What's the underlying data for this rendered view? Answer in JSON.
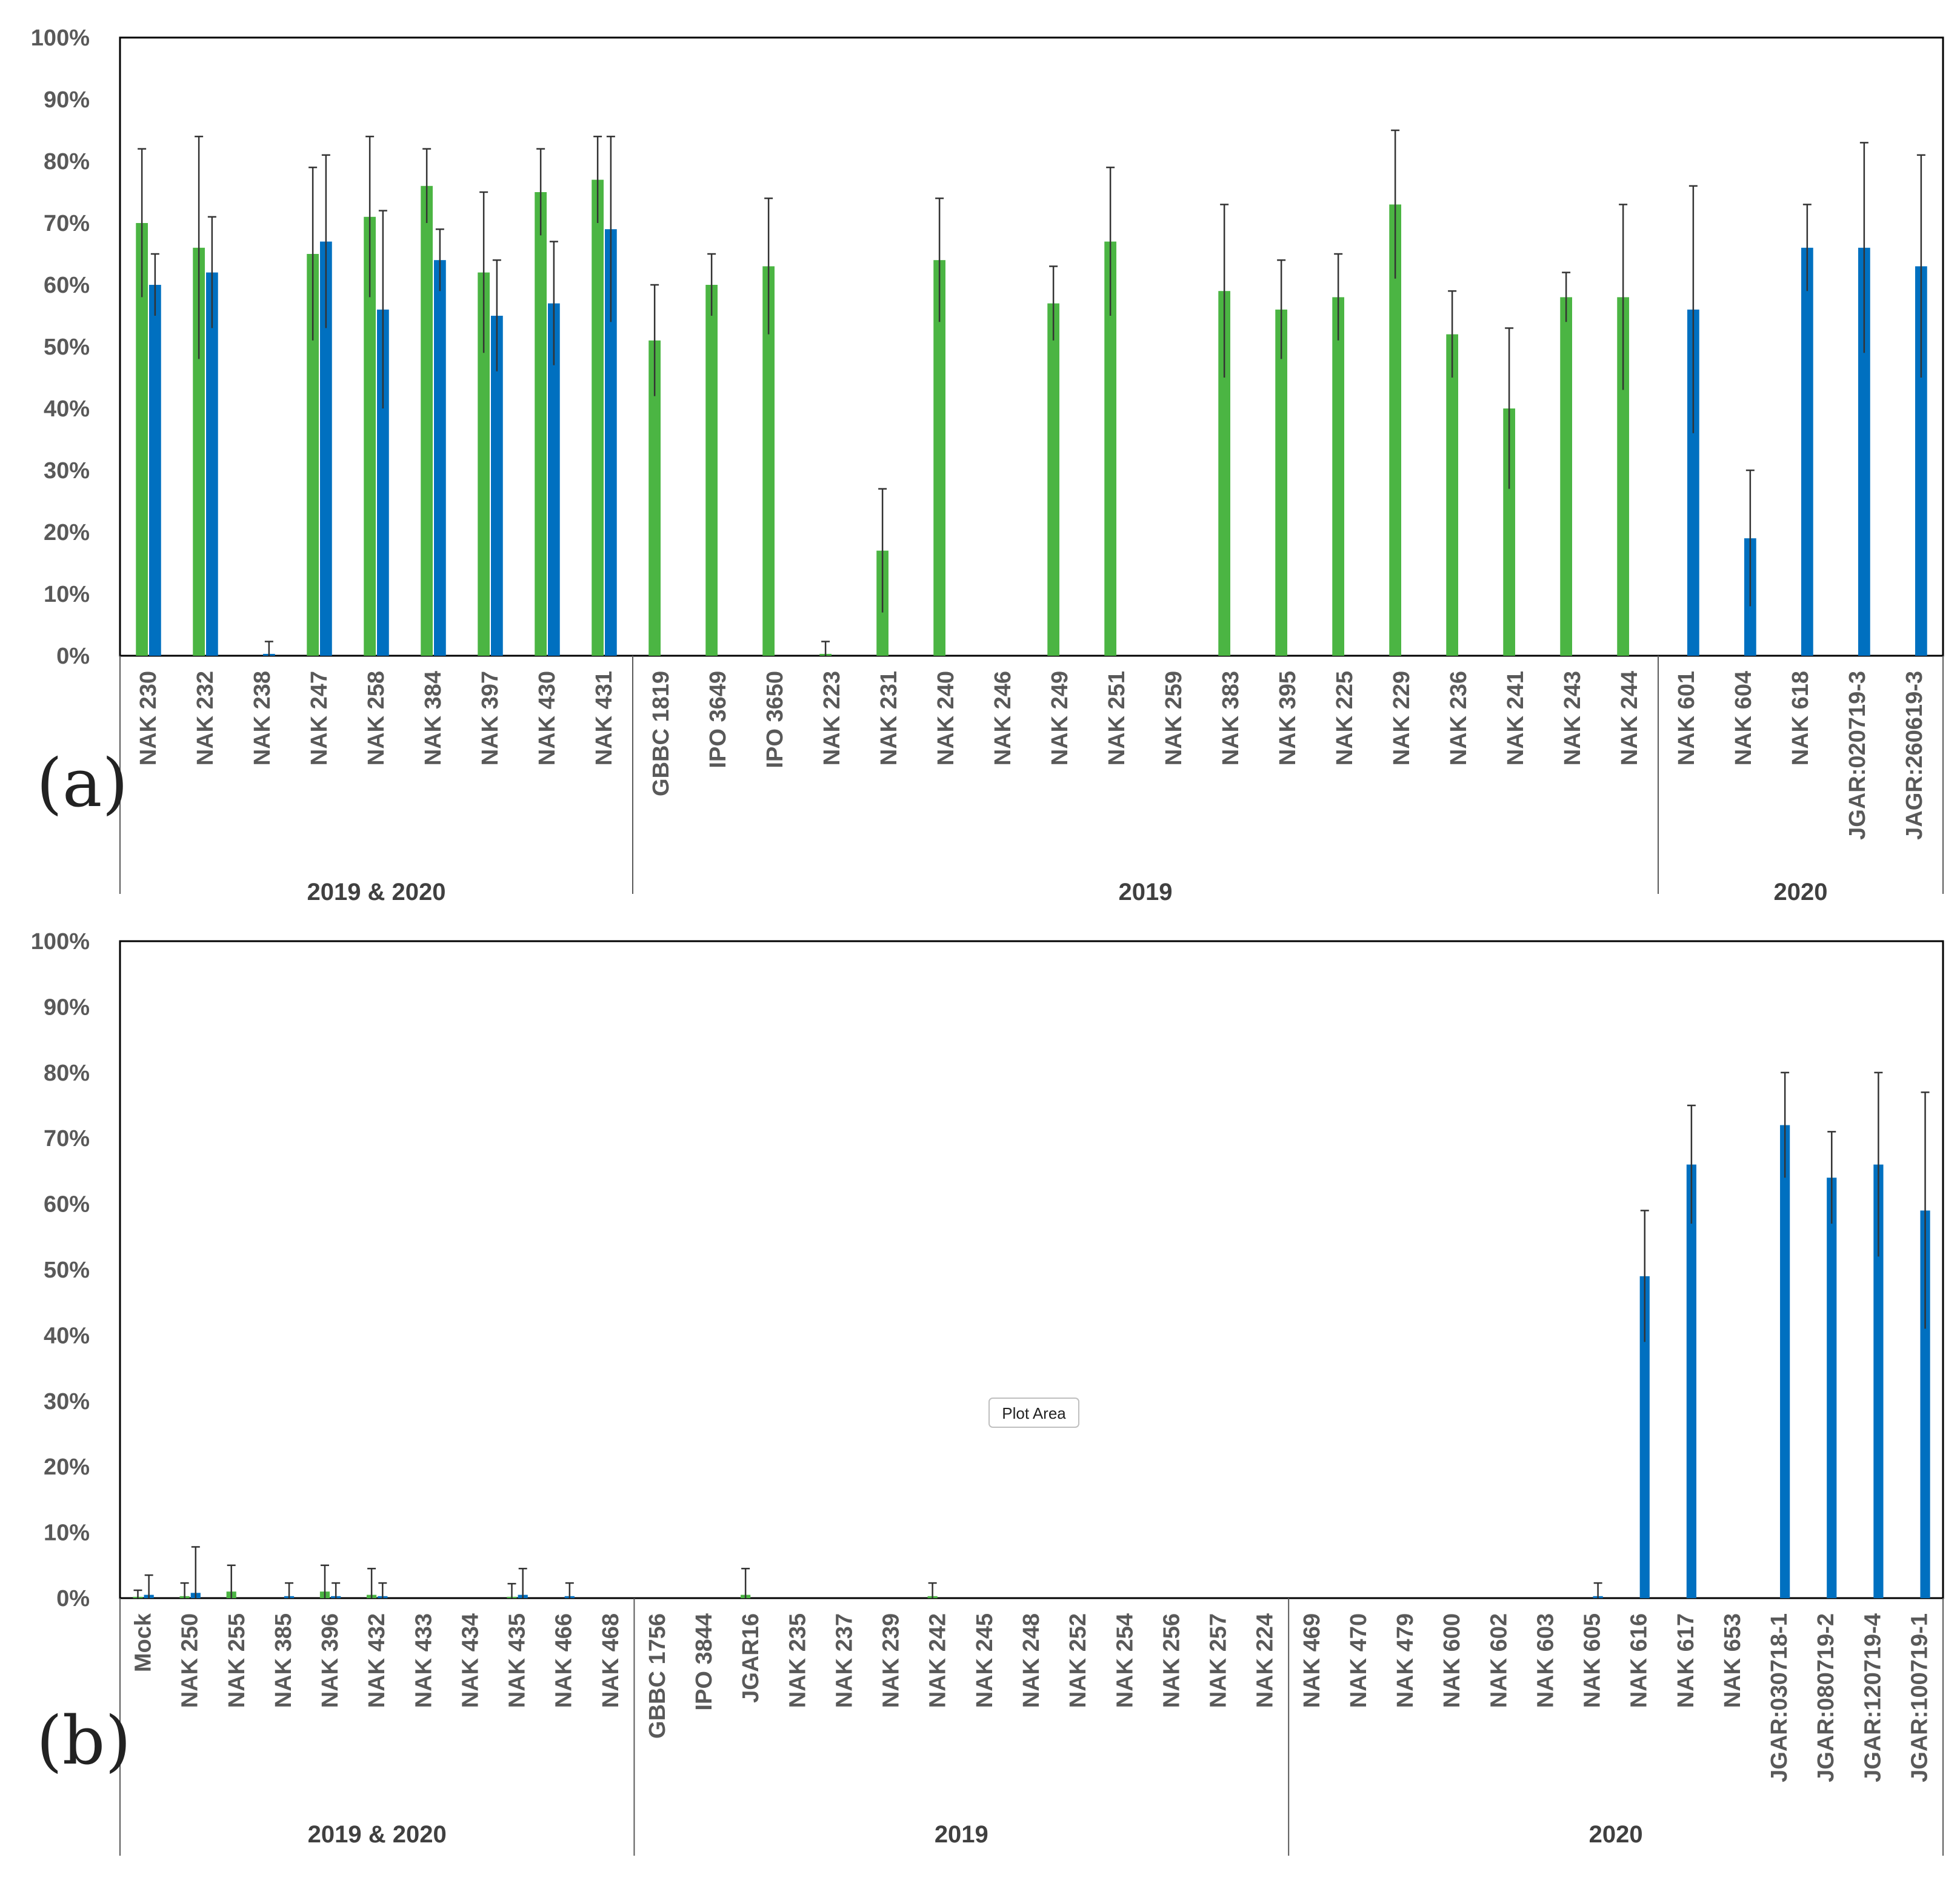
{
  "colors": {
    "green": "#4BB543",
    "blue": "#0070C0",
    "axis": "#595959",
    "error": "#333333"
  },
  "tooltip": "Plot Area",
  "chart_data": [
    {
      "type": "bar",
      "panel_label": "(a)",
      "ylim": [
        0,
        100
      ],
      "yticks": [
        "0%",
        "10%",
        "20%",
        "30%",
        "40%",
        "50%",
        "60%",
        "70%",
        "80%",
        "90%",
        "100%"
      ],
      "categories": [
        "NAK 230",
        "NAK 232",
        "NAK 238",
        "NAK 247",
        "NAK 258",
        "NAK 384",
        "NAK 397",
        "NAK 430",
        "NAK 431",
        "GBBC 1819",
        "IPO 3649",
        "IPO 3650",
        "NAK 223",
        "NAK 231",
        "NAK 240",
        "NAK 246",
        "NAK 249",
        "NAK 251",
        "NAK 259",
        "NAK 383",
        "NAK 395",
        "NAK 225",
        "NAK 229",
        "NAK 236",
        "NAK 241",
        "NAK 243",
        "NAK 244",
        "NAK 601",
        "NAK 604",
        "NAK 618",
        "JGAR:020719-3",
        "JAGR:260619-3"
      ],
      "groups": [
        {
          "label": "2019 & 2020",
          "start": 0,
          "end": 8
        },
        {
          "label": "2019",
          "start": 9,
          "end": 26
        },
        {
          "label": "2020",
          "start": 27,
          "end": 31
        }
      ],
      "series": [
        {
          "color": "green",
          "values": [
            70,
            66,
            0,
            65,
            71,
            76,
            62,
            75,
            77,
            51,
            60,
            63,
            0.3,
            17,
            64,
            null,
            57,
            67,
            null,
            59,
            56,
            58,
            73,
            52,
            40,
            58,
            58,
            null,
            null,
            null,
            null,
            null
          ],
          "errors": [
            12,
            18,
            0,
            14,
            13,
            6,
            13,
            7,
            7,
            9,
            5,
            11,
            2,
            10,
            10,
            null,
            6,
            12,
            null,
            14,
            8,
            7,
            12,
            7,
            13,
            4,
            15,
            null,
            null,
            null,
            null,
            null
          ]
        },
        {
          "color": "blue",
          "values": [
            60,
            62,
            0.3,
            67,
            56,
            64,
            55,
            57,
            69,
            null,
            null,
            null,
            null,
            null,
            null,
            null,
            null,
            null,
            null,
            null,
            null,
            null,
            null,
            null,
            null,
            null,
            null,
            56,
            19,
            66,
            66,
            63
          ],
          "errors": [
            5,
            9,
            2,
            14,
            16,
            5,
            9,
            10,
            15,
            null,
            null,
            null,
            null,
            null,
            null,
            null,
            null,
            null,
            null,
            null,
            null,
            null,
            null,
            null,
            null,
            null,
            null,
            20,
            11,
            7,
            17,
            18
          ]
        }
      ]
    },
    {
      "type": "bar",
      "panel_label": "(b)",
      "ylim": [
        0,
        100
      ],
      "yticks": [
        "0%",
        "10%",
        "20%",
        "30%",
        "40%",
        "50%",
        "60%",
        "70%",
        "80%",
        "90%",
        "100%"
      ],
      "categories": [
        "Mock",
        "NAK 250",
        "NAK 255",
        "NAK 385",
        "NAK 396",
        "NAK 432",
        "NAK 433",
        "NAK 434",
        "NAK 435",
        "NAK 466",
        "NAK 468",
        "GBBC 1756",
        "IPO 3844",
        "JGAR16",
        "NAK 235",
        "NAK 237",
        "NAK 239",
        "NAK 242",
        "NAK 245",
        "NAK 248",
        "NAK 252",
        "NAK 254",
        "NAK 256",
        "NAK 257",
        "NAK 224",
        "NAK 469",
        "NAK 470",
        "NAK 479",
        "NAK 600",
        "NAK 602",
        "NAK 603",
        "NAK 605",
        "NAK 616",
        "NAK 617",
        "NAK 653",
        "JGAR:030718-1",
        "JGAR:080719-2",
        "JGAR:120719-4",
        "JGAR:100719-1"
      ],
      "groups": [
        {
          "label": "2019 & 2020",
          "start": 0,
          "end": 10
        },
        {
          "label": "2019",
          "start": 11,
          "end": 24
        },
        {
          "label": "2020",
          "start": 25,
          "end": 38
        }
      ],
      "series": [
        {
          "color": "green",
          "values": [
            0.2,
            0.3,
            1,
            0,
            1,
            0.5,
            0,
            0,
            0.2,
            0,
            0,
            null,
            null,
            0.5,
            null,
            null,
            null,
            0.3,
            null,
            null,
            null,
            null,
            null,
            null,
            null,
            null,
            null,
            null,
            null,
            null,
            null,
            null,
            null,
            null,
            null,
            null,
            null,
            null,
            null
          ],
          "errors": [
            1,
            2,
            4,
            0,
            4,
            4,
            0,
            0,
            2,
            0,
            0,
            null,
            null,
            4,
            null,
            null,
            null,
            2,
            null,
            null,
            null,
            null,
            null,
            null,
            null,
            null,
            null,
            null,
            null,
            null,
            null,
            null,
            null,
            null,
            null,
            null,
            null,
            null,
            null
          ]
        },
        {
          "color": "blue",
          "values": [
            0.5,
            0.8,
            0,
            0.3,
            0.3,
            0.3,
            0,
            0,
            0.5,
            0.3,
            0,
            null,
            null,
            null,
            null,
            null,
            null,
            null,
            null,
            null,
            null,
            null,
            null,
            null,
            null,
            0,
            0,
            0,
            0,
            0,
            0,
            0.3,
            49,
            66,
            0,
            72,
            64,
            66,
            59
          ],
          "errors": [
            3,
            7,
            0,
            2,
            2,
            2,
            0,
            0,
            4,
            2,
            0,
            null,
            null,
            null,
            null,
            null,
            null,
            null,
            null,
            null,
            null,
            null,
            null,
            null,
            null,
            0,
            0,
            0,
            0,
            0,
            0,
            2,
            10,
            9,
            0,
            8,
            7,
            14,
            18
          ]
        }
      ]
    }
  ]
}
